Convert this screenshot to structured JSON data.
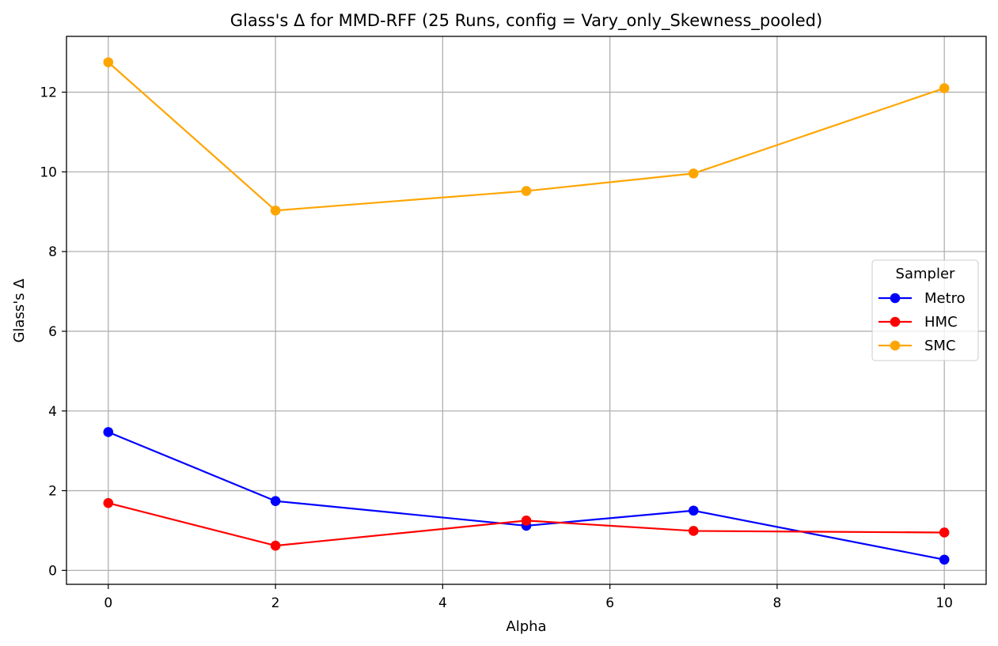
{
  "chart_data": {
    "type": "line",
    "title": "Glass's Δ for MMD-RFF (25 Runs, config = Vary_only_Skewness_pooled)",
    "xlabel": "Alpha",
    "ylabel": "Glass's Δ",
    "x": [
      0,
      2,
      5,
      7,
      10
    ],
    "xlim": [
      -0.5,
      10.5
    ],
    "ylim": [
      -0.35,
      13.4
    ],
    "xticks": [
      0,
      2,
      4,
      6,
      8,
      10
    ],
    "yticks": [
      0,
      2,
      4,
      6,
      8,
      10,
      12
    ],
    "grid": true,
    "legend": {
      "title": "Sampler",
      "position": "center-right"
    },
    "series": [
      {
        "name": "Metro",
        "color": "#0000ff",
        "values": [
          3.47,
          1.74,
          1.12,
          1.5,
          0.27
        ]
      },
      {
        "name": "HMC",
        "color": "#ff0000",
        "values": [
          1.69,
          0.62,
          1.25,
          0.99,
          0.95
        ]
      },
      {
        "name": "SMC",
        "color": "#ffa500",
        "values": [
          12.75,
          9.03,
          9.52,
          9.96,
          12.1
        ]
      }
    ]
  }
}
